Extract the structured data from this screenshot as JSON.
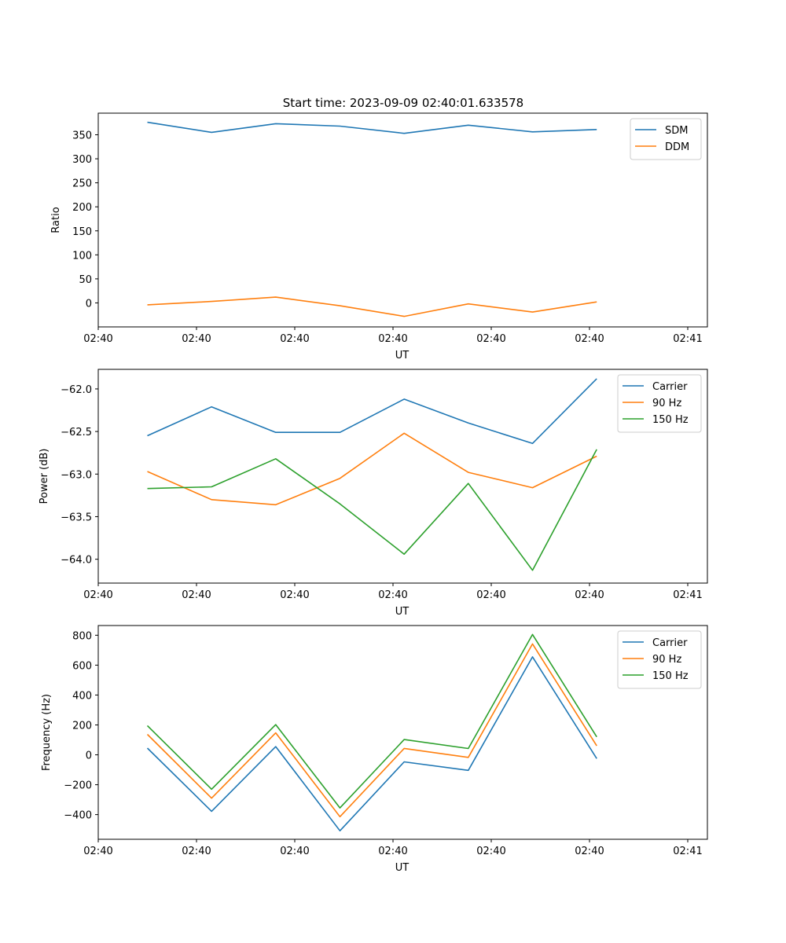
{
  "figure_title": "Start time: 2023-09-09 02:40:01.633578",
  "colors": {
    "c0": "#1f77b4",
    "c1": "#ff7f0e",
    "c2": "#2ca02c"
  },
  "chart_data": [
    {
      "type": "line",
      "xlabel": "UT",
      "ylabel": "Ratio",
      "xlim": [
        0,
        9.3
      ],
      "ylim": [
        -50,
        395
      ],
      "xticks": [
        0.0,
        1.5,
        3.0,
        4.5,
        6.0,
        7.5,
        9.0
      ],
      "xtick_labels": [
        "02:40",
        "02:40",
        "02:40",
        "02:40",
        "02:40",
        "02:40",
        "02:41"
      ],
      "yticks": [
        0,
        50,
        100,
        150,
        200,
        250,
        300,
        350
      ],
      "ytick_labels": [
        "0",
        "50",
        "100",
        "150",
        "200",
        "250",
        "300",
        "350"
      ],
      "x": [
        0.75,
        1.73,
        2.71,
        3.69,
        4.67,
        5.65,
        6.63,
        7.61
      ],
      "legend_loc": "top-right",
      "series": [
        {
          "name": "SDM",
          "color": "#1f77b4",
          "values": [
            376,
            355,
            373,
            368,
            353,
            370,
            356,
            361
          ]
        },
        {
          "name": "DDM",
          "color": "#ff7f0e",
          "values": [
            -4,
            3,
            12,
            -6,
            -28,
            -2,
            -19,
            2
          ]
        }
      ]
    },
    {
      "type": "line",
      "xlabel": "UT",
      "ylabel": "Power (dB)",
      "xlim": [
        0,
        9.3
      ],
      "ylim": [
        -64.28,
        -61.77
      ],
      "xticks": [
        0.0,
        1.5,
        3.0,
        4.5,
        6.0,
        7.5,
        9.0
      ],
      "xtick_labels": [
        "02:40",
        "02:40",
        "02:40",
        "02:40",
        "02:40",
        "02:40",
        "02:41"
      ],
      "yticks": [
        -64.0,
        -63.5,
        -63.0,
        -62.5,
        -62.0
      ],
      "ytick_labels": [
        "−64.0",
        "−63.5",
        "−63.0",
        "−62.5",
        "−62.0"
      ],
      "x": [
        0.75,
        1.73,
        2.71,
        3.69,
        4.67,
        5.65,
        6.63,
        7.61
      ],
      "legend_loc": "top-right",
      "series": [
        {
          "name": "Carrier",
          "color": "#1f77b4",
          "values": [
            -62.55,
            -62.21,
            -62.51,
            -62.51,
            -62.12,
            -62.4,
            -62.64,
            -61.88
          ]
        },
        {
          "name": "90 Hz",
          "color": "#ff7f0e",
          "values": [
            -62.97,
            -63.3,
            -63.36,
            -63.05,
            -62.52,
            -62.98,
            -63.16,
            -62.79
          ]
        },
        {
          "name": "150 Hz",
          "color": "#2ca02c",
          "values": [
            -63.17,
            -63.15,
            -62.82,
            -63.35,
            -63.94,
            -63.11,
            -64.13,
            -62.71
          ]
        }
      ]
    },
    {
      "type": "line",
      "xlabel": "UT",
      "ylabel": "Frequency (Hz)",
      "xlim": [
        0,
        9.3
      ],
      "ylim": [
        -565,
        865
      ],
      "xticks": [
        0.0,
        1.5,
        3.0,
        4.5,
        6.0,
        7.5,
        9.0
      ],
      "xtick_labels": [
        "02:40",
        "02:40",
        "02:40",
        "02:40",
        "02:40",
        "02:40",
        "02:41"
      ],
      "yticks": [
        -400,
        -200,
        0,
        200,
        400,
        600,
        800
      ],
      "ytick_labels": [
        "−400",
        "−200",
        "0",
        "200",
        "400",
        "600",
        "800"
      ],
      "x": [
        0.75,
        1.73,
        2.71,
        3.69,
        4.67,
        5.65,
        6.63,
        7.61
      ],
      "legend_loc": "top-right",
      "series": [
        {
          "name": "Carrier",
          "color": "#1f77b4",
          "values": [
            45,
            -378,
            55,
            -508,
            -47,
            -104,
            655,
            -25
          ]
        },
        {
          "name": "90 Hz",
          "color": "#ff7f0e",
          "values": [
            137,
            -290,
            147,
            -414,
            43,
            -17,
            742,
            60
          ]
        },
        {
          "name": "150 Hz",
          "color": "#2ca02c",
          "values": [
            195,
            -230,
            202,
            -355,
            102,
            42,
            805,
            120
          ]
        }
      ]
    }
  ]
}
